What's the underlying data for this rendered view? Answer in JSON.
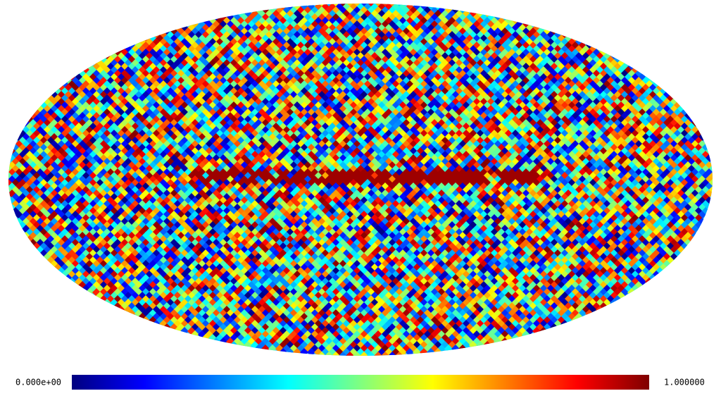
{
  "colorbar": {
    "colormap": "jet",
    "min": {
      "value": 0,
      "label": "0.000e+00"
    },
    "max": {
      "value": 1,
      "label": "1.000000"
    }
  }
}
